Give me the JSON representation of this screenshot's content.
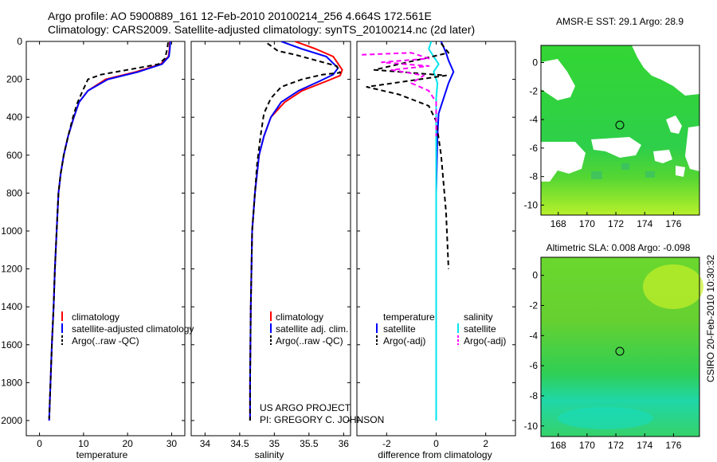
{
  "header": {
    "title_line1": "Argo profile: AO 5900889_161 12-Feb-2010 20100214_256 4.664S 172.561E",
    "title_line2": "Climatology: CARS2009. Satellite-adjusted climatology: synTS_20100214.nc (2d later)"
  },
  "colors": {
    "climatology": "#ff0000",
    "satellite": "#0000ff",
    "argo": "#000000",
    "salinity_satellite": "#00e5ee",
    "salinity_argo": "#ff00ff",
    "map_green": "#33cc33"
  },
  "chart_data": [
    {
      "type": "line",
      "id": "temperature",
      "xlabel": "temperature",
      "xlim": [
        -3,
        33
      ],
      "ylim": [
        2080,
        0
      ],
      "xticks": [
        0,
        10,
        20,
        30
      ],
      "yticks": [
        0,
        200,
        400,
        600,
        800,
        1000,
        1200,
        1400,
        1600,
        1800,
        2000
      ],
      "legend": [
        "climatology",
        "satellite-adjusted climatology",
        "Argo(..raw -QC)"
      ],
      "series": [
        {
          "name": "climatology",
          "color": "red",
          "dash": "",
          "points": [
            [
              29.6,
              0
            ],
            [
              29.5,
              40
            ],
            [
              29.3,
              80
            ],
            [
              27.5,
              120
            ],
            [
              22,
              160
            ],
            [
              15,
              200
            ],
            [
              11,
              260
            ],
            [
              9,
              320
            ],
            [
              7.8,
              400
            ],
            [
              6.5,
              500
            ],
            [
              5.5,
              600
            ],
            [
              4.8,
              700
            ],
            [
              4.3,
              800
            ],
            [
              3.9,
              1000
            ],
            [
              3.5,
              1200
            ],
            [
              3.2,
              1400
            ],
            [
              2.8,
              1600
            ],
            [
              2.5,
              1800
            ],
            [
              2.2,
              2000
            ]
          ]
        },
        {
          "name": "satellite-adjusted climatology",
          "color": "blue",
          "dash": "",
          "points": [
            [
              29.7,
              0
            ],
            [
              29.6,
              40
            ],
            [
              29.4,
              80
            ],
            [
              27.8,
              120
            ],
            [
              22.5,
              160
            ],
            [
              15.5,
              200
            ],
            [
              11,
              260
            ],
            [
              9,
              320
            ],
            [
              7.8,
              400
            ],
            [
              6.5,
              500
            ],
            [
              5.5,
              600
            ],
            [
              4.8,
              700
            ],
            [
              4.3,
              800
            ],
            [
              3.9,
              1000
            ],
            [
              3.5,
              1200
            ],
            [
              3.2,
              1400
            ],
            [
              2.8,
              1600
            ],
            [
              2.5,
              1800
            ],
            [
              2.2,
              2000
            ]
          ]
        },
        {
          "name": "Argo(..raw -QC)",
          "color": "black",
          "dash": "6,4",
          "points": [
            [
              29.2,
              5
            ],
            [
              29,
              40
            ],
            [
              28.5,
              90
            ],
            [
              27,
              120
            ],
            [
              20,
              150
            ],
            [
              14,
              175
            ],
            [
              11,
              200
            ],
            [
              9.8,
              260
            ],
            [
              8.5,
              330
            ],
            [
              7.6,
              400
            ],
            [
              6.5,
              500
            ],
            [
              5.5,
              600
            ],
            [
              4.8,
              700
            ],
            [
              4.3,
              800
            ],
            [
              3.9,
              1000
            ],
            [
              3.5,
              1200
            ],
            [
              3.2,
              1400
            ],
            [
              2.8,
              1600
            ],
            [
              2.5,
              1800
            ],
            [
              2.2,
              1990
            ]
          ]
        }
      ]
    },
    {
      "type": "line",
      "id": "salinity",
      "xlabel": "salinity",
      "xlim": [
        33.8,
        36.1
      ],
      "ylim": [
        2080,
        0
      ],
      "xticks": [
        "34",
        "34.5",
        "35",
        "35.5",
        "36"
      ],
      "legend": [
        "climatology",
        "satellite adj. clim.",
        "Argo(..raw -QC)"
      ],
      "series": [
        {
          "name": "climatology",
          "color": "red",
          "dash": "",
          "points": [
            [
              35.3,
              0
            ],
            [
              35.6,
              40
            ],
            [
              35.85,
              80
            ],
            [
              35.98,
              150
            ],
            [
              35.95,
              180
            ],
            [
              35.75,
              210
            ],
            [
              35.4,
              260
            ],
            [
              35.15,
              320
            ],
            [
              34.95,
              400
            ],
            [
              34.85,
              500
            ],
            [
              34.78,
              600
            ],
            [
              34.72,
              800
            ],
            [
              34.68,
              1000
            ],
            [
              34.66,
              1400
            ],
            [
              34.65,
              1800
            ],
            [
              34.65,
              2000
            ]
          ]
        },
        {
          "name": "satellite adj. clim.",
          "color": "blue",
          "dash": "",
          "points": [
            [
              35.1,
              0
            ],
            [
              35.4,
              40
            ],
            [
              35.75,
              80
            ],
            [
              35.92,
              140
            ],
            [
              35.85,
              175
            ],
            [
              35.65,
              210
            ],
            [
              35.35,
              260
            ],
            [
              35.1,
              320
            ],
            [
              34.95,
              400
            ],
            [
              34.85,
              500
            ],
            [
              34.78,
              600
            ],
            [
              34.72,
              800
            ],
            [
              34.68,
              1000
            ],
            [
              34.66,
              1400
            ],
            [
              34.65,
              1800
            ],
            [
              34.65,
              2000
            ]
          ]
        },
        {
          "name": "Argo(..raw -QC)",
          "color": "black",
          "dash": "6,4",
          "points": [
            [
              34.9,
              10
            ],
            [
              35.05,
              50
            ],
            [
              35.3,
              70
            ],
            [
              35.5,
              90
            ],
            [
              35.9,
              130
            ],
            [
              35.95,
              165
            ],
            [
              35.7,
              175
            ],
            [
              35.4,
              200
            ],
            [
              35.1,
              240
            ],
            [
              34.95,
              300
            ],
            [
              34.85,
              380
            ],
            [
              34.8,
              500
            ],
            [
              34.75,
              650
            ],
            [
              34.72,
              800
            ],
            [
              34.68,
              1000
            ],
            [
              34.66,
              1400
            ],
            [
              34.65,
              1800
            ],
            [
              34.65,
              2000
            ]
          ]
        }
      ],
      "annotation": [
        "US ARGO PROJECT",
        "PI: GREGORY C. JOHNSON"
      ]
    },
    {
      "type": "line",
      "id": "difference",
      "xlabel": "difference from climatology",
      "xlim": [
        -3.2,
        3.2
      ],
      "ylim": [
        2080,
        0
      ],
      "xticks": [
        "-2",
        "0",
        "2"
      ],
      "legend": [
        "temperature",
        "salinity",
        "satellite",
        "satellite",
        "Argo(-adj)",
        "Argo(-adj)"
      ],
      "series": [
        {
          "name": "temperature satellite",
          "color": "blue",
          "dash": "",
          "points": [
            [
              0.2,
              0
            ],
            [
              0.4,
              60
            ],
            [
              0.5,
              100
            ],
            [
              0.7,
              160
            ],
            [
              0.5,
              220
            ],
            [
              0.3,
              300
            ],
            [
              0.1,
              380
            ],
            [
              0.05,
              500
            ],
            [
              0,
              800
            ],
            [
              0,
              1200
            ],
            [
              0,
              2000
            ]
          ]
        },
        {
          "name": "salinity satellite",
          "color": "cyan",
          "dash": "",
          "points": [
            [
              -0.2,
              0
            ],
            [
              -0.3,
              40
            ],
            [
              -0.1,
              80
            ],
            [
              0.1,
              120
            ],
            [
              -0.1,
              160
            ],
            [
              0.05,
              220
            ],
            [
              0,
              300
            ],
            [
              0,
              600
            ],
            [
              0,
              2000
            ]
          ]
        },
        {
          "name": "temperature Argo(-adj)",
          "color": "black",
          "dash": "6,4",
          "points": [
            [
              0.2,
              10
            ],
            [
              0.5,
              60
            ],
            [
              -2.5,
              150
            ],
            [
              0.4,
              180
            ],
            [
              -2.8,
              240
            ],
            [
              -1.5,
              280
            ],
            [
              -0.3,
              340
            ],
            [
              0,
              420
            ],
            [
              0.2,
              600
            ],
            [
              0.4,
              900
            ],
            [
              0.5,
              1200
            ]
          ]
        },
        {
          "name": "salinity Argo(-adj)",
          "color": "magenta",
          "dash": "6,4",
          "points": [
            [
              -3,
              70
            ],
            [
              -1,
              60
            ],
            [
              -0.3,
              90
            ],
            [
              -2.2,
              110
            ],
            [
              -0.3,
              130
            ],
            [
              -1.8,
              150
            ],
            [
              -0.5,
              180
            ],
            [
              -1,
              220
            ],
            [
              -0.3,
              260
            ],
            [
              0,
              320
            ],
            [
              0,
              500
            ]
          ]
        }
      ]
    }
  ],
  "maps": [
    {
      "title": "AMSR-E SST: 29.1 Argo: 28.9",
      "yticks": [
        "0",
        "-2",
        "-4",
        "-6",
        "-8",
        "-10"
      ],
      "xticks": [
        "168",
        "170",
        "172",
        "174",
        "176"
      ]
    },
    {
      "title": "Altimetric SLA: 0.008 Argo: -0.098",
      "yticks": [
        "0",
        "-2",
        "-4",
        "-6",
        "-8",
        "-10"
      ],
      "xticks": [
        "168",
        "170",
        "172",
        "174",
        "176"
      ]
    }
  ],
  "timestamp": "CSIRO 20-Feb-2010 10:30:32"
}
